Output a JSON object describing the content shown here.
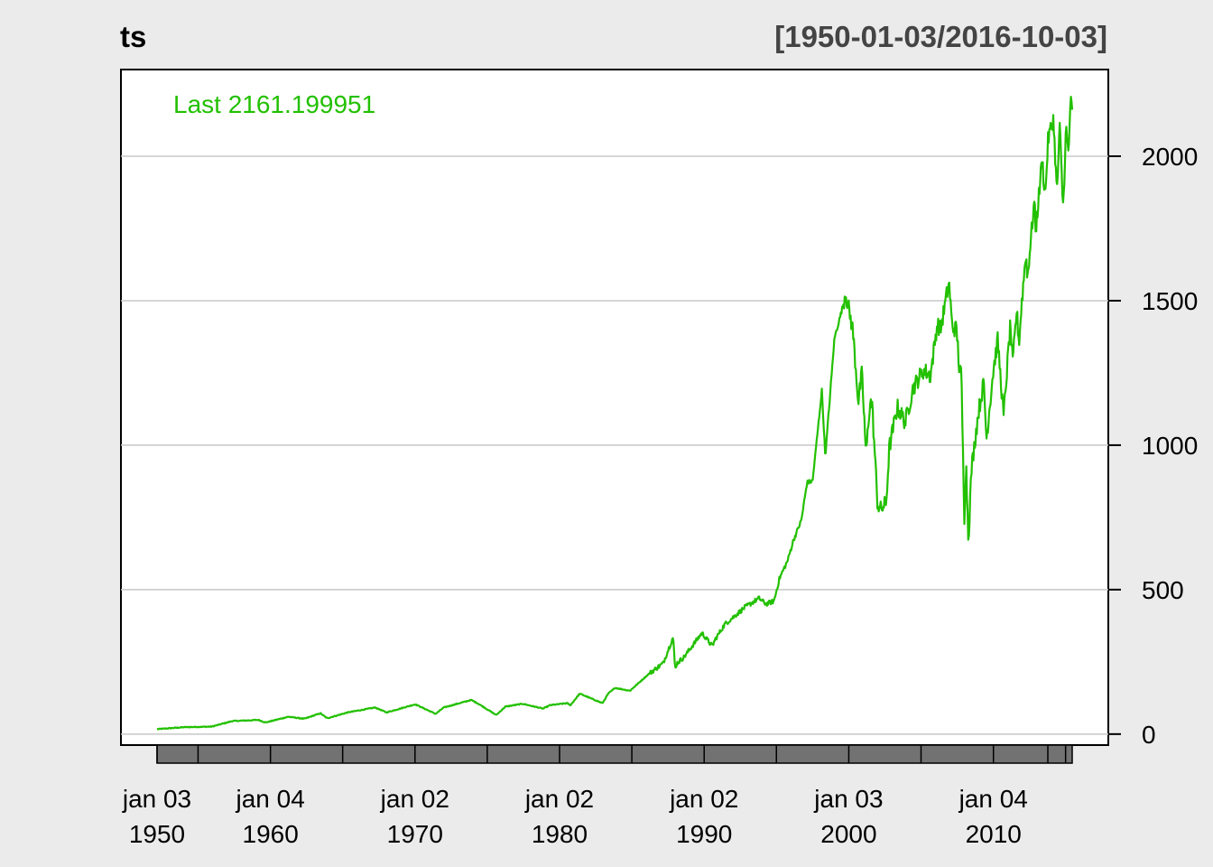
{
  "chart_data": {
    "type": "line",
    "title": "ts",
    "date_range_label": "[1950-01-03/2016-10-03]",
    "legend": {
      "text": "Last 2161.199951",
      "placement": "top-left"
    },
    "color": "#22c000",
    "grid": true,
    "y_axis": {
      "position": "right",
      "ylim": [
        -38,
        2300
      ],
      "ticks": [
        0,
        500,
        1000,
        1500,
        2000
      ]
    },
    "xlim": [
      "1949-09-01",
      "2017-12-15"
    ],
    "x_ticks": [
      {
        "date": "1950-01-03",
        "label1": "jan 03",
        "label2": "1950"
      },
      {
        "date": "1960-01-04",
        "label1": "jan 04",
        "label2": "1960"
      },
      {
        "date": "1970-01-02",
        "label1": "jan 02",
        "label2": "1970"
      },
      {
        "date": "1980-01-02",
        "label1": "jan 02",
        "label2": "1980"
      },
      {
        "date": "1990-01-02",
        "label1": "jan 02",
        "label2": "1990"
      },
      {
        "date": "2000-01-03",
        "label1": "jan 03",
        "label2": "2000"
      },
      {
        "date": "2010-01-04",
        "label1": "jan 04",
        "label2": "2010"
      }
    ],
    "minor_tick_dates": [
      "1955-01-01",
      "1965-01-01",
      "1975-01-01",
      "1985-01-01",
      "1995-01-01",
      "2005-01-01",
      "2015-01-01"
    ],
    "x": [
      "1950-01-03",
      "1952-01-01",
      "1954-01-01",
      "1955-07-01",
      "1957-06-01",
      "1957-12-01",
      "1959-08-01",
      "1960-10-01",
      "1961-12-01",
      "1962-06-01",
      "1963-12-01",
      "1965-12-01",
      "1966-10-01",
      "1968-11-01",
      "1970-05-01",
      "1970-12-01",
      "1972-12-01",
      "1973-06-01",
      "1974-10-01",
      "1975-06-01",
      "1976-09-01",
      "1978-03-01",
      "1978-09-01",
      "1979-12-01",
      "1980-03-01",
      "1980-11-01",
      "1982-07-01",
      "1982-12-01",
      "1983-06-01",
      "1984-07-01",
      "1985-12-01",
      "1986-12-01",
      "1987-08-25",
      "1987-10-19",
      "1987-12-01",
      "1988-06-01",
      "1989-10-01",
      "1990-07-01",
      "1990-10-01",
      "1991-06-01",
      "1992-12-01",
      "1993-12-01",
      "1994-06-01",
      "1995-01-01",
      "1995-06-01",
      "1996-01-01",
      "1996-06-01",
      "1997-01-01",
      "1997-06-01",
      "1997-10-27",
      "1998-07-01",
      "1998-10-01",
      "1999-06-01",
      "1999-12-01",
      "2000-03-24",
      "2000-10-01",
      "2001-03-01",
      "2001-06-01",
      "2001-09-21",
      "2002-01-01",
      "2002-03-01",
      "2002-07-23",
      "2002-10-09",
      "2003-03-11",
      "2003-06-01",
      "2004-01-01",
      "2004-08-01",
      "2005-03-01",
      "2005-12-01",
      "2006-06-01",
      "2006-12-01",
      "2007-02-27",
      "2007-10-09",
      "2008-01-01",
      "2008-05-01",
      "2008-07-15",
      "2008-09-01",
      "2008-11-20",
      "2009-01-06",
      "2009-03-09",
      "2009-06-01",
      "2009-12-01",
      "2010-04-23",
      "2010-07-02",
      "2010-12-31",
      "2011-04-29",
      "2011-10-03",
      "2011-12-30",
      "2012-04-02",
      "2012-06-01",
      "2012-09-14",
      "2012-11-15",
      "2013-01-31",
      "2013-05-21",
      "2013-06-24",
      "2013-12-31",
      "2014-02-03",
      "2014-07-24",
      "2014-10-15",
      "2014-12-31",
      "2015-05-21",
      "2015-08-25",
      "2015-11-03",
      "2016-01-20",
      "2016-02-11",
      "2016-04-20",
      "2016-06-27",
      "2016-08-15",
      "2016-10-03"
    ],
    "y": [
      17,
      24,
      26,
      45,
      49,
      40,
      60,
      53,
      72,
      55,
      75,
      92,
      75,
      103,
      70,
      92,
      118,
      106,
      66,
      95,
      105,
      88,
      100,
      107,
      100,
      140,
      107,
      140,
      160,
      150,
      210,
      245,
      336,
      224,
      245,
      265,
      350,
      305,
      330,
      380,
      440,
      470,
      450,
      460,
      540,
      600,
      670,
      740,
      870,
      876,
      1190,
      960,
      1370,
      1460,
      1527,
      1400,
      1150,
      1250,
      966,
      1150,
      1140,
      797,
      776,
      800,
      990,
      1132,
      1080,
      1200,
      1260,
      1240,
      1420,
      1400,
      1565,
      1410,
      1400,
      1250,
      1250,
      752,
      934,
      676,
      920,
      1115,
      1217,
      1022,
      1258,
      1363,
      1099,
      1258,
      1419,
      1278,
      1466,
      1353,
      1498,
      1669,
      1573,
      1848,
      1741,
      1988,
      1862,
      2059,
      2131,
      1867,
      2109,
      1859,
      1829,
      2100,
      2000,
      2190,
      2161
    ],
    "noise_ranges": [
      {
        "from": "1986-01-01",
        "to": "1999-12-31",
        "amplitude": 8
      },
      {
        "from": "2000-01-01",
        "to": "2016-10-03",
        "amplitude": 30
      }
    ]
  }
}
